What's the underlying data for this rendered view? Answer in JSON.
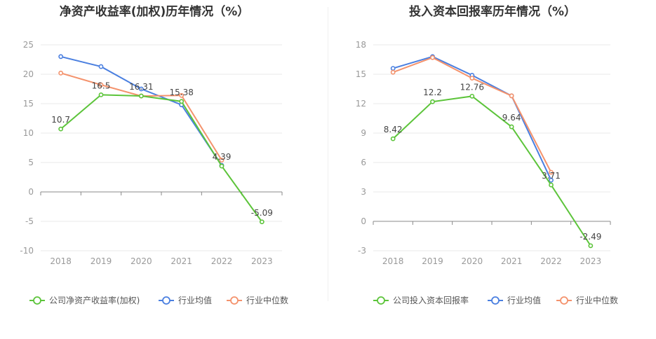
{
  "chart_data": [
    {
      "type": "line",
      "title": "净资产收益率(加权)历年情况（%）",
      "xlabel": "",
      "ylabel": "",
      "categories": [
        "2018",
        "2019",
        "2020",
        "2021",
        "2022",
        "2023"
      ],
      "yticks": [
        "25",
        "20",
        "15",
        "10",
        "5",
        "0",
        "-5",
        "-10"
      ],
      "ylim": [
        -10,
        25
      ],
      "grid": true,
      "legend_position": "bottom",
      "series": [
        {
          "name": "公司净资产收益率(加权)",
          "color": "#5cc43a",
          "values": [
            10.7,
            16.5,
            16.31,
            15.38,
            4.39,
            -5.09
          ],
          "labels": [
            "10.7",
            "16.5",
            "16.31",
            "15.38",
            "4.39",
            "-5.09"
          ]
        },
        {
          "name": "行业均值",
          "color": "#4a7fe0",
          "values": [
            23.0,
            21.3,
            17.5,
            14.8,
            4.5,
            null
          ],
          "labels": []
        },
        {
          "name": "行业中位数",
          "color": "#f4926c",
          "values": [
            20.2,
            18.2,
            16.3,
            16.4,
            5.4,
            null
          ],
          "labels": []
        }
      ]
    },
    {
      "type": "line",
      "title": "投入资本回报率历年情况（%）",
      "xlabel": "",
      "ylabel": "",
      "categories": [
        "2018",
        "2019",
        "2020",
        "2021",
        "2022",
        "2023"
      ],
      "yticks": [
        "18",
        "15",
        "12",
        "9",
        "6",
        "3",
        "0",
        "-3"
      ],
      "ylim": [
        -3,
        18
      ],
      "grid": true,
      "legend_position": "bottom",
      "series": [
        {
          "name": "公司投入资本回报率",
          "color": "#5cc43a",
          "values": [
            8.42,
            12.2,
            12.76,
            9.64,
            3.71,
            -2.49
          ],
          "labels": [
            "8.42",
            "12.2",
            "12.76",
            "9.64",
            "3.71",
            "-2.49"
          ]
        },
        {
          "name": "行业均值",
          "color": "#4a7fe0",
          "values": [
            15.6,
            16.8,
            14.9,
            12.8,
            4.2,
            null
          ],
          "labels": []
        },
        {
          "name": "行业中位数",
          "color": "#f4926c",
          "values": [
            15.2,
            16.7,
            14.6,
            12.8,
            5.0,
            null
          ],
          "labels": []
        }
      ]
    }
  ]
}
